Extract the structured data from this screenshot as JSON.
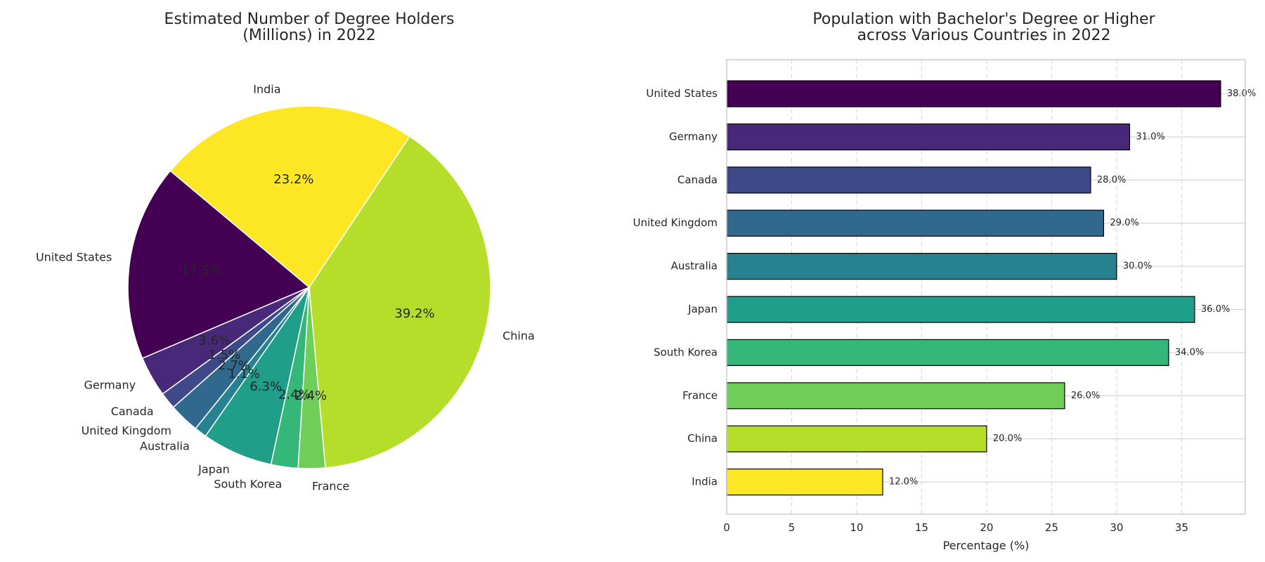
{
  "chart_data": [
    {
      "type": "pie",
      "title": "Estimated Number of Degree Holders\n(Millions) in 2022",
      "categories": [
        "United States",
        "Germany",
        "Canada",
        "United Kingdom",
        "Australia",
        "Japan",
        "South Korea",
        "France",
        "China",
        "India"
      ],
      "values": [
        17.5,
        3.6,
        1.5,
        2.7,
        1.1,
        6.3,
        2.4,
        2.4,
        39.2,
        23.2
      ],
      "percent_labels": [
        "17.5%",
        "3.6%",
        "1.5%",
        "2.7%",
        "1.1%",
        "6.3%",
        "2.4%",
        "2.4%",
        "39.2%",
        "23.2%"
      ],
      "colors": [
        "#440154",
        "#482878",
        "#3e4989",
        "#31688e",
        "#26828e",
        "#1f9e89",
        "#35b779",
        "#6ece58",
        "#b5de2b",
        "#fde725"
      ],
      "start_angle_deg": 140,
      "direction": "counterclockwise"
    },
    {
      "type": "bar",
      "orientation": "horizontal",
      "title": "Population with Bachelor's Degree or Higher\nacross Various Countries in 2022",
      "categories": [
        "United States",
        "Germany",
        "Canada",
        "United Kingdom",
        "Australia",
        "Japan",
        "South Korea",
        "France",
        "China",
        "India"
      ],
      "values": [
        38.0,
        31.0,
        28.0,
        29.0,
        30.0,
        36.0,
        34.0,
        26.0,
        20.0,
        12.0
      ],
      "value_labels": [
        "38.0%",
        "31.0%",
        "28.0%",
        "29.0%",
        "30.0%",
        "36.0%",
        "34.0%",
        "26.0%",
        "20.0%",
        "12.0%"
      ],
      "colors": [
        "#440154",
        "#482878",
        "#3e4989",
        "#31688e",
        "#26828e",
        "#1f9e89",
        "#35b779",
        "#6ece58",
        "#b5de2b",
        "#fde725"
      ],
      "xlabel": "Percentage (%)",
      "ylabel": "",
      "xlim": [
        0,
        39.9
      ],
      "xticks": [
        0,
        5,
        10,
        15,
        20,
        25,
        30,
        35
      ],
      "grid": true
    }
  ]
}
